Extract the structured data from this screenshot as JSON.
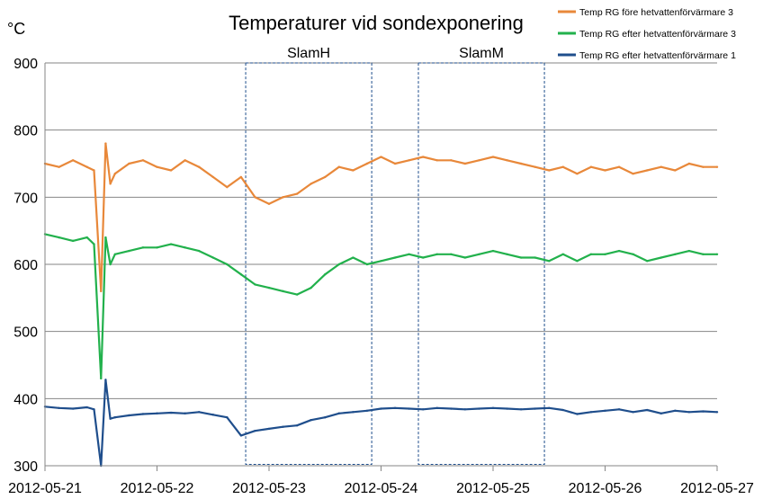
{
  "chart_data": {
    "type": "line",
    "title": "Temperaturer vid sondexponering",
    "ylabel": "°C",
    "ylim": [
      300,
      900
    ],
    "yticks": [
      "300",
      "400",
      "500",
      "600",
      "700",
      "800",
      "900"
    ],
    "xlim": [
      "2012-05-21",
      "2012-05-27"
    ],
    "xticks": [
      "2012-05-21",
      "2012-05-22",
      "2012-05-23",
      "2012-05-24",
      "2012-05-25",
      "2012-05-26",
      "2012-05-27"
    ],
    "grid": "horizontal",
    "legend_position": "top-right",
    "regions": [
      {
        "label": "SlamH",
        "x_start": "2012-05-22 19:00",
        "x_end": "2012-05-23 22:00",
        "y_range": [
          302,
          900
        ]
      },
      {
        "label": "SlamM",
        "x_start": "2012-05-24 08:00",
        "x_end": "2012-05-25 11:00",
        "y_range": [
          302,
          900
        ]
      }
    ],
    "series": [
      {
        "name": "Temp RG före hetvattenförvärmare 3",
        "color": "#E8883A",
        "x": [
          "2012-05-21 00:00",
          "2012-05-21 03:00",
          "2012-05-21 06:00",
          "2012-05-21 09:00",
          "2012-05-21 10:30",
          "2012-05-21 12:00",
          "2012-05-21 13:00",
          "2012-05-21 14:00",
          "2012-05-21 15:00",
          "2012-05-21 18:00",
          "2012-05-21 21:00",
          "2012-05-22 00:00",
          "2012-05-22 03:00",
          "2012-05-22 06:00",
          "2012-05-22 09:00",
          "2012-05-22 12:00",
          "2012-05-22 15:00",
          "2012-05-22 18:00",
          "2012-05-22 21:00",
          "2012-05-23 00:00",
          "2012-05-23 03:00",
          "2012-05-23 06:00",
          "2012-05-23 09:00",
          "2012-05-23 12:00",
          "2012-05-23 15:00",
          "2012-05-23 18:00",
          "2012-05-23 21:00",
          "2012-05-24 00:00",
          "2012-05-24 03:00",
          "2012-05-24 06:00",
          "2012-05-24 09:00",
          "2012-05-24 12:00",
          "2012-05-24 15:00",
          "2012-05-24 18:00",
          "2012-05-24 21:00",
          "2012-05-25 00:00",
          "2012-05-25 03:00",
          "2012-05-25 06:00",
          "2012-05-25 09:00",
          "2012-05-25 12:00",
          "2012-05-25 15:00",
          "2012-05-25 18:00",
          "2012-05-25 21:00",
          "2012-05-26 00:00",
          "2012-05-26 03:00",
          "2012-05-26 06:00",
          "2012-05-26 09:00",
          "2012-05-26 12:00",
          "2012-05-26 15:00",
          "2012-05-26 18:00",
          "2012-05-26 21:00",
          "2012-05-27 00:00"
        ],
        "values": [
          750,
          745,
          755,
          745,
          740,
          560,
          780,
          720,
          735,
          750,
          755,
          745,
          740,
          755,
          745,
          730,
          715,
          730,
          700,
          690,
          700,
          705,
          720,
          730,
          745,
          740,
          750,
          760,
          750,
          755,
          760,
          755,
          755,
          750,
          755,
          760,
          755,
          750,
          745,
          740,
          745,
          735,
          745,
          740,
          745,
          735,
          740,
          745,
          740,
          750,
          745,
          745
        ]
      },
      {
        "name": "Temp RG efter hetvattenförvärmare 3",
        "color": "#22B14C",
        "x": [
          "2012-05-21 00:00",
          "2012-05-21 03:00",
          "2012-05-21 06:00",
          "2012-05-21 09:00",
          "2012-05-21 10:30",
          "2012-05-21 12:00",
          "2012-05-21 13:00",
          "2012-05-21 14:00",
          "2012-05-21 15:00",
          "2012-05-21 18:00",
          "2012-05-21 21:00",
          "2012-05-22 00:00",
          "2012-05-22 03:00",
          "2012-05-22 06:00",
          "2012-05-22 09:00",
          "2012-05-22 12:00",
          "2012-05-22 15:00",
          "2012-05-22 18:00",
          "2012-05-22 21:00",
          "2012-05-23 00:00",
          "2012-05-23 03:00",
          "2012-05-23 06:00",
          "2012-05-23 09:00",
          "2012-05-23 12:00",
          "2012-05-23 15:00",
          "2012-05-23 18:00",
          "2012-05-23 21:00",
          "2012-05-24 00:00",
          "2012-05-24 03:00",
          "2012-05-24 06:00",
          "2012-05-24 09:00",
          "2012-05-24 12:00",
          "2012-05-24 15:00",
          "2012-05-24 18:00",
          "2012-05-24 21:00",
          "2012-05-25 00:00",
          "2012-05-25 03:00",
          "2012-05-25 06:00",
          "2012-05-25 09:00",
          "2012-05-25 12:00",
          "2012-05-25 15:00",
          "2012-05-25 18:00",
          "2012-05-25 21:00",
          "2012-05-26 00:00",
          "2012-05-26 03:00",
          "2012-05-26 06:00",
          "2012-05-26 09:00",
          "2012-05-26 12:00",
          "2012-05-26 15:00",
          "2012-05-26 18:00",
          "2012-05-26 21:00",
          "2012-05-27 00:00"
        ],
        "values": [
          645,
          640,
          635,
          640,
          630,
          430,
          640,
          600,
          615,
          620,
          625,
          625,
          630,
          625,
          620,
          610,
          600,
          585,
          570,
          565,
          560,
          555,
          565,
          585,
          600,
          610,
          600,
          605,
          610,
          615,
          610,
          615,
          615,
          610,
          615,
          620,
          615,
          610,
          610,
          605,
          615,
          605,
          615,
          615,
          620,
          615,
          605,
          610,
          615,
          620,
          615,
          615
        ]
      },
      {
        "name": "Temp RG efter hetvattenförvärmare 1",
        "color": "#1F4E8C",
        "x": [
          "2012-05-21 00:00",
          "2012-05-21 03:00",
          "2012-05-21 06:00",
          "2012-05-21 09:00",
          "2012-05-21 10:30",
          "2012-05-21 12:00",
          "2012-05-21 13:00",
          "2012-05-21 14:00",
          "2012-05-21 15:00",
          "2012-05-21 18:00",
          "2012-05-21 21:00",
          "2012-05-22 00:00",
          "2012-05-22 03:00",
          "2012-05-22 06:00",
          "2012-05-22 09:00",
          "2012-05-22 12:00",
          "2012-05-22 15:00",
          "2012-05-22 18:00",
          "2012-05-22 21:00",
          "2012-05-23 00:00",
          "2012-05-23 03:00",
          "2012-05-23 06:00",
          "2012-05-23 09:00",
          "2012-05-23 12:00",
          "2012-05-23 15:00",
          "2012-05-23 18:00",
          "2012-05-23 21:00",
          "2012-05-24 00:00",
          "2012-05-24 03:00",
          "2012-05-24 06:00",
          "2012-05-24 09:00",
          "2012-05-24 12:00",
          "2012-05-24 15:00",
          "2012-05-24 18:00",
          "2012-05-24 21:00",
          "2012-05-25 00:00",
          "2012-05-25 03:00",
          "2012-05-25 06:00",
          "2012-05-25 09:00",
          "2012-05-25 12:00",
          "2012-05-25 15:00",
          "2012-05-25 18:00",
          "2012-05-25 21:00",
          "2012-05-26 00:00",
          "2012-05-26 03:00",
          "2012-05-26 06:00",
          "2012-05-26 09:00",
          "2012-05-26 12:00",
          "2012-05-26 15:00",
          "2012-05-26 18:00",
          "2012-05-26 21:00",
          "2012-05-27 00:00"
        ],
        "values": [
          388,
          386,
          385,
          387,
          384,
          300,
          428,
          370,
          372,
          375,
          377,
          378,
          379,
          378,
          380,
          376,
          372,
          345,
          352,
          355,
          358,
          360,
          368,
          372,
          378,
          380,
          382,
          385,
          386,
          385,
          384,
          386,
          385,
          384,
          385,
          386,
          385,
          384,
          385,
          386,
          383,
          377,
          380,
          382,
          384,
          380,
          383,
          378,
          382,
          380,
          381,
          380
        ]
      }
    ]
  }
}
